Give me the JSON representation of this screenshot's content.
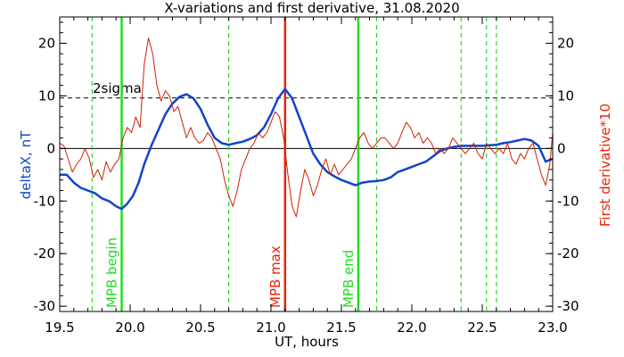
{
  "chart_data": {
    "type": "line",
    "title": "X-variations and first derivative, 31.08.2020",
    "xlabel": "UT, hours",
    "ylabel_left": "deltaX, nT",
    "ylabel_right": "First derivative*10",
    "xlim": [
      19.5,
      23.0
    ],
    "ylim": [
      -31,
      25
    ],
    "x_ticks": [
      "19.5",
      "20.0",
      "20.5",
      "21.0",
      "21.5",
      "22.0",
      "22.5",
      "23.0"
    ],
    "y_ticks": [
      "20",
      "10",
      "0",
      "-10",
      "-20",
      "-30"
    ],
    "grid": false,
    "threshold": {
      "label": "2sigma",
      "value": 9.6,
      "style": "dashed",
      "color": "#000000"
    },
    "zero_line": 0,
    "vertical_markers": [
      {
        "label": "MPB begin",
        "x": 19.94,
        "color": "#22dd22",
        "style": "solid"
      },
      {
        "label": "MPB max",
        "x": 21.1,
        "color": "#ee2200",
        "style": "solid"
      },
      {
        "label": "MPB end",
        "x": 21.62,
        "color": "#22dd22",
        "style": "solid"
      },
      {
        "x": 19.73,
        "color": "#22dd22",
        "style": "dashed"
      },
      {
        "x": 20.7,
        "color": "#22dd22",
        "style": "dashed"
      },
      {
        "x": 21.75,
        "color": "#22dd22",
        "style": "dashed"
      },
      {
        "x": 22.35,
        "color": "#22dd22",
        "style": "dashed"
      },
      {
        "x": 22.53,
        "color": "#22dd22",
        "style": "dashed"
      },
      {
        "x": 22.6,
        "color": "#22dd22",
        "style": "dashed"
      }
    ],
    "series": [
      {
        "color": "#1144cc",
        "axis": "left",
        "x": [
          19.5,
          19.55,
          19.6,
          19.65,
          19.7,
          19.75,
          19.8,
          19.85,
          19.9,
          19.94,
          19.98,
          20.02,
          20.06,
          20.1,
          20.15,
          20.2,
          20.25,
          20.3,
          20.35,
          20.4,
          20.45,
          20.5,
          20.55,
          20.6,
          20.65,
          20.7,
          20.75,
          20.8,
          20.85,
          20.9,
          20.95,
          21.0,
          21.05,
          21.1,
          21.15,
          21.2,
          21.25,
          21.3,
          21.35,
          21.4,
          21.45,
          21.5,
          21.55,
          21.6,
          21.65,
          21.7,
          21.75,
          21.8,
          21.85,
          21.9,
          21.95,
          22.0,
          22.05,
          22.1,
          22.15,
          22.2,
          22.25,
          22.3,
          22.35,
          22.4,
          22.45,
          22.5,
          22.55,
          22.6,
          22.65,
          22.7,
          22.75,
          22.8,
          22.85,
          22.9,
          22.95,
          23.0
        ],
        "values": [
          -5,
          -5,
          -6.5,
          -7.5,
          -8,
          -8.5,
          -9.5,
          -10,
          -11,
          -11.5,
          -10.5,
          -9,
          -6.5,
          -3,
          0.5,
          3.5,
          6.5,
          8.5,
          9.8,
          10.3,
          9.5,
          7.5,
          4.5,
          2,
          1,
          0.7,
          1,
          1.3,
          1.8,
          2.5,
          4,
          6.5,
          9.5,
          11.3,
          9.5,
          6,
          2.5,
          -1,
          -3,
          -4.5,
          -5.3,
          -6,
          -6.5,
          -7,
          -6.5,
          -6.3,
          -6.2,
          -6,
          -5.5,
          -4.5,
          -4,
          -3.5,
          -3,
          -2.5,
          -1.5,
          -0.5,
          0,
          0.3,
          0.5,
          0.5,
          0.5,
          0.5,
          0.6,
          0.7,
          1,
          1.2,
          1.5,
          1.8,
          1.5,
          0.5,
          -2.5,
          -2
        ]
      },
      {
        "color": "#cc2200",
        "axis": "right",
        "x": [
          19.5,
          19.53,
          19.56,
          19.59,
          19.62,
          19.65,
          19.68,
          19.71,
          19.74,
          19.77,
          19.8,
          19.83,
          19.86,
          19.89,
          19.92,
          19.95,
          19.98,
          20.01,
          20.04,
          20.07,
          20.1,
          20.13,
          20.16,
          20.19,
          20.22,
          20.25,
          20.28,
          20.31,
          20.34,
          20.37,
          20.4,
          20.43,
          20.46,
          20.49,
          20.52,
          20.55,
          20.58,
          20.61,
          20.64,
          20.67,
          20.7,
          20.73,
          20.76,
          20.79,
          20.82,
          20.85,
          20.88,
          20.91,
          20.94,
          20.97,
          21.0,
          21.03,
          21.06,
          21.09,
          21.12,
          21.15,
          21.18,
          21.21,
          21.24,
          21.27,
          21.3,
          21.33,
          21.36,
          21.39,
          21.42,
          21.45,
          21.48,
          21.51,
          21.54,
          21.57,
          21.6,
          21.63,
          21.66,
          21.69,
          21.72,
          21.75,
          21.78,
          21.81,
          21.84,
          21.87,
          21.9,
          21.93,
          21.96,
          21.99,
          22.02,
          22.05,
          22.08,
          22.11,
          22.14,
          22.17,
          22.2,
          22.23,
          22.26,
          22.29,
          22.32,
          22.35,
          22.38,
          22.41,
          22.44,
          22.47,
          22.5,
          22.53,
          22.56,
          22.59,
          22.62,
          22.65,
          22.68,
          22.71,
          22.74,
          22.77,
          22.8,
          22.83,
          22.86,
          22.89,
          22.92,
          22.95,
          22.98,
          23.0
        ],
        "values": [
          1,
          0.5,
          -2,
          -4.5,
          -3,
          -2,
          0,
          -2,
          -5.5,
          -4,
          -6,
          -2.5,
          -4.5,
          -3,
          -2,
          2,
          4,
          3,
          6,
          4,
          16,
          21,
          18,
          12,
          9,
          11,
          10,
          7,
          8,
          5,
          2,
          4,
          2,
          1,
          1.5,
          3,
          2,
          0,
          -2,
          -6,
          -9,
          -11,
          -8,
          -4,
          -2,
          0,
          1,
          3,
          2,
          3,
          5,
          7,
          6,
          2,
          -5,
          -11,
          -13,
          -8,
          -4,
          -6,
          -9,
          -7,
          -4,
          -2,
          -5,
          -3,
          -5,
          -4,
          -3,
          -2,
          0,
          2,
          3,
          1,
          0,
          1,
          2,
          2,
          1,
          0,
          1,
          3,
          5,
          4,
          2,
          3,
          1,
          2,
          1,
          -1,
          0,
          -1,
          0,
          2,
          1,
          0,
          -1,
          0,
          1,
          -1,
          -2,
          1,
          0,
          -1,
          0,
          -1,
          1,
          -2,
          -3,
          -1,
          -2,
          0,
          1,
          -2,
          -5,
          -7,
          -3,
          3
        ]
      }
    ]
  }
}
